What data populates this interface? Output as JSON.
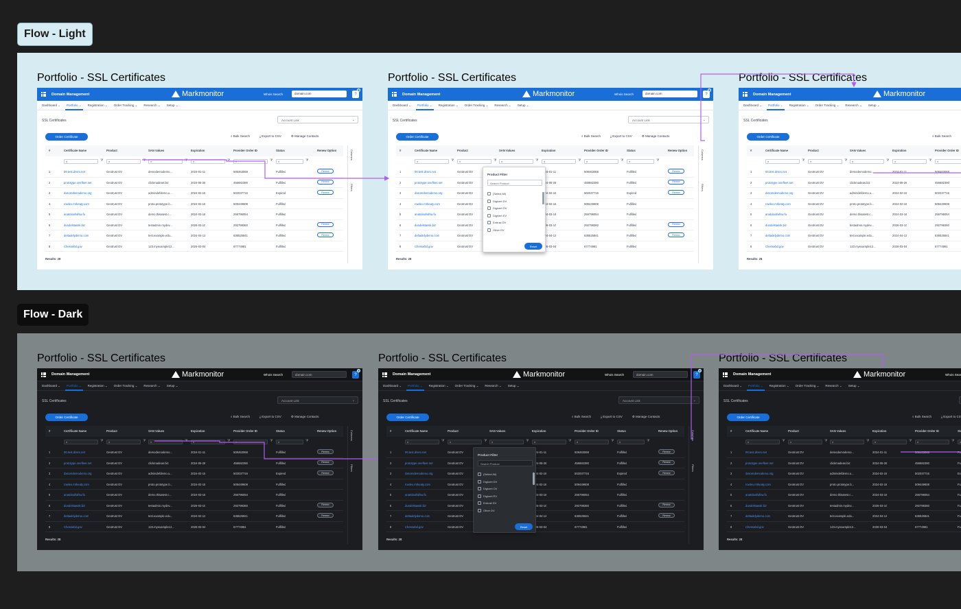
{
  "flows": {
    "light_label": "Flow - Light",
    "dark_label": "Flow - Dark"
  },
  "frame": {
    "title": "Portfolio - SSL Certificates",
    "app_name": "Domain Management",
    "brand": "Markmonitor",
    "whois_label": "Whois Search",
    "whois_value": "domain.com",
    "help_glyph": "?",
    "menu_glyph": "☰",
    "nav": [
      "Dashboard ⌄",
      "Portfolio ⌄",
      "Registration ⌄",
      "Order Tracking ⌄",
      "Research ⌄",
      "Setup ⌄"
    ],
    "page_heading": "SSL Certificates",
    "account_light": "Account Link",
    "account_dark": "Account Link",
    "chevron_glyph": "⌄",
    "order_button": "Order Certificate",
    "toolbar": [
      "⌕ Bulk Search",
      "⤓ Export to CSV",
      "⚙ Manage Contacts"
    ],
    "columns": [
      "#",
      "Certificate Name",
      "Product",
      "SAN Values",
      "Expiration",
      "Provider Order ID",
      "Status",
      "Renew Option"
    ],
    "filter_glyph": "⌕",
    "funnel_glyph": "⧩",
    "rows": [
      {
        "num": "1",
        "name": "00.test.dnsrx.net",
        "product": "Geotrust DV",
        "san": "demodemodemo...",
        "exp": "2024-01-11",
        "oid": "508463068",
        "status": "Fulfilled",
        "renew": "Renew"
      },
      {
        "num": "2",
        "name": "prototype.onefleet.net",
        "product": "Geotrust DV",
        "san": "clickmadeas.biz",
        "exp": "2024-05-28",
        "oid": "456682390",
        "status": "Fulfilled",
        "renew": "Renew"
      },
      {
        "num": "3",
        "name": "dxsomdemodemo.org",
        "product": "Geotrust DV",
        "san": "admindefdemo.u...",
        "exp": "2024-02-15",
        "oid": "502037716",
        "status": "Expired",
        "renew": "Renew"
      },
      {
        "num": "4",
        "name": "rowlex.mrkeaty.com",
        "product": "Geotrust DV",
        "san": "proto.prototype.b...",
        "exp": "2024-02-18",
        "oid": "509449608",
        "status": "Fulfilled",
        "renew": ""
      },
      {
        "num": "5",
        "name": "anatolaofwfsw.fu",
        "product": "Geotrust DV",
        "san": "demo.thisatest.c...",
        "exp": "2024-03-16",
        "oid": "256796054",
        "status": "Fulfilled",
        "renew": ""
      },
      {
        "num": "6",
        "name": "dundelstassk.biz",
        "product": "Geotrust DV",
        "san": "testadmin.mydev...",
        "exp": "2026-03-10",
        "oid": "292798360",
        "status": "Fulfilled",
        "renew": "Renew"
      },
      {
        "num": "7",
        "name": "deltadelydemo.com",
        "product": "Geotrust DV",
        "san": "test.example.edu...",
        "exp": "2024-04-12",
        "oid": "636525841",
        "status": "Fulfilled",
        "renew": "Renew"
      },
      {
        "num": "8",
        "name": "Chessebd.gov",
        "product": "Geotrust DV",
        "san": "123.myexample12...",
        "exp": "2026-03-04",
        "oid": "67774981",
        "status": "Fulfilled",
        "renew": ""
      }
    ],
    "results": "Results: 28",
    "side_columns": "Columns",
    "side_filters": "Filters",
    "popover": {
      "title": "Product Filter",
      "search_placeholder": "Search Product",
      "options": [
        "(Select All)",
        "Digicert DV",
        "Digicert OV",
        "Digicert EV",
        "Entrust DV",
        "Other DV"
      ],
      "reset": "Reset"
    }
  },
  "colors": {
    "accent": "#1a6ed8",
    "flow_arrow": "#b25cf2",
    "light_bg": "#d7ecf2",
    "dark_bg": "#7f8688"
  }
}
